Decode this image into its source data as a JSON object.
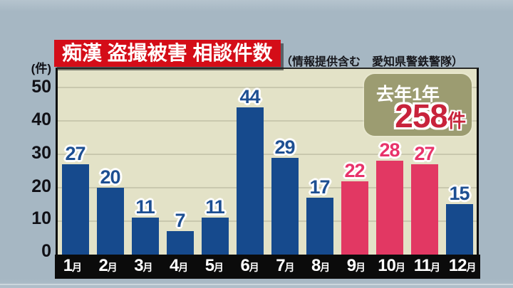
{
  "title": {
    "text": "痴漢 盗撮被害 相談件数"
  },
  "subtitle": "（情報提供含む　愛知県警鉄警隊）",
  "y_axis": {
    "unit": "(件)",
    "ticks": [
      "50",
      "40",
      "30",
      "20",
      "10",
      "0"
    ]
  },
  "badge": {
    "label": "去年1年",
    "value": "258",
    "unit": "件"
  },
  "chart_data": {
    "type": "bar",
    "title": "痴漢 盗撮被害 相談件数",
    "source_note": "（情報提供含む　愛知県警鉄警隊）",
    "categories": [
      "1月",
      "2月",
      "3月",
      "4月",
      "5月",
      "6月",
      "7月",
      "8月",
      "9月",
      "10月",
      "11月",
      "12月"
    ],
    "values": [
      27,
      20,
      11,
      7,
      11,
      44,
      29,
      17,
      22,
      28,
      27,
      15
    ],
    "highlight_indices": [
      8,
      9,
      10
    ],
    "ylabel": "(件)",
    "ylim": [
      0,
      50
    ],
    "yticks": [
      0,
      10,
      20,
      30,
      40,
      50
    ],
    "grid": true,
    "legend": "none",
    "annotation": {
      "label": "去年1年",
      "value": 258,
      "unit": "件"
    },
    "colors": {
      "bar_default": "#164a8d",
      "bar_highlight": "#e23863",
      "plot_background": "#e3e2c7",
      "page_background": "#a6b7c3",
      "title_banner": "#d40d18",
      "badge_background": "#9c9c71",
      "badge_value_red": "#c8233b",
      "axis_band_black": "#0b0b0b"
    }
  }
}
